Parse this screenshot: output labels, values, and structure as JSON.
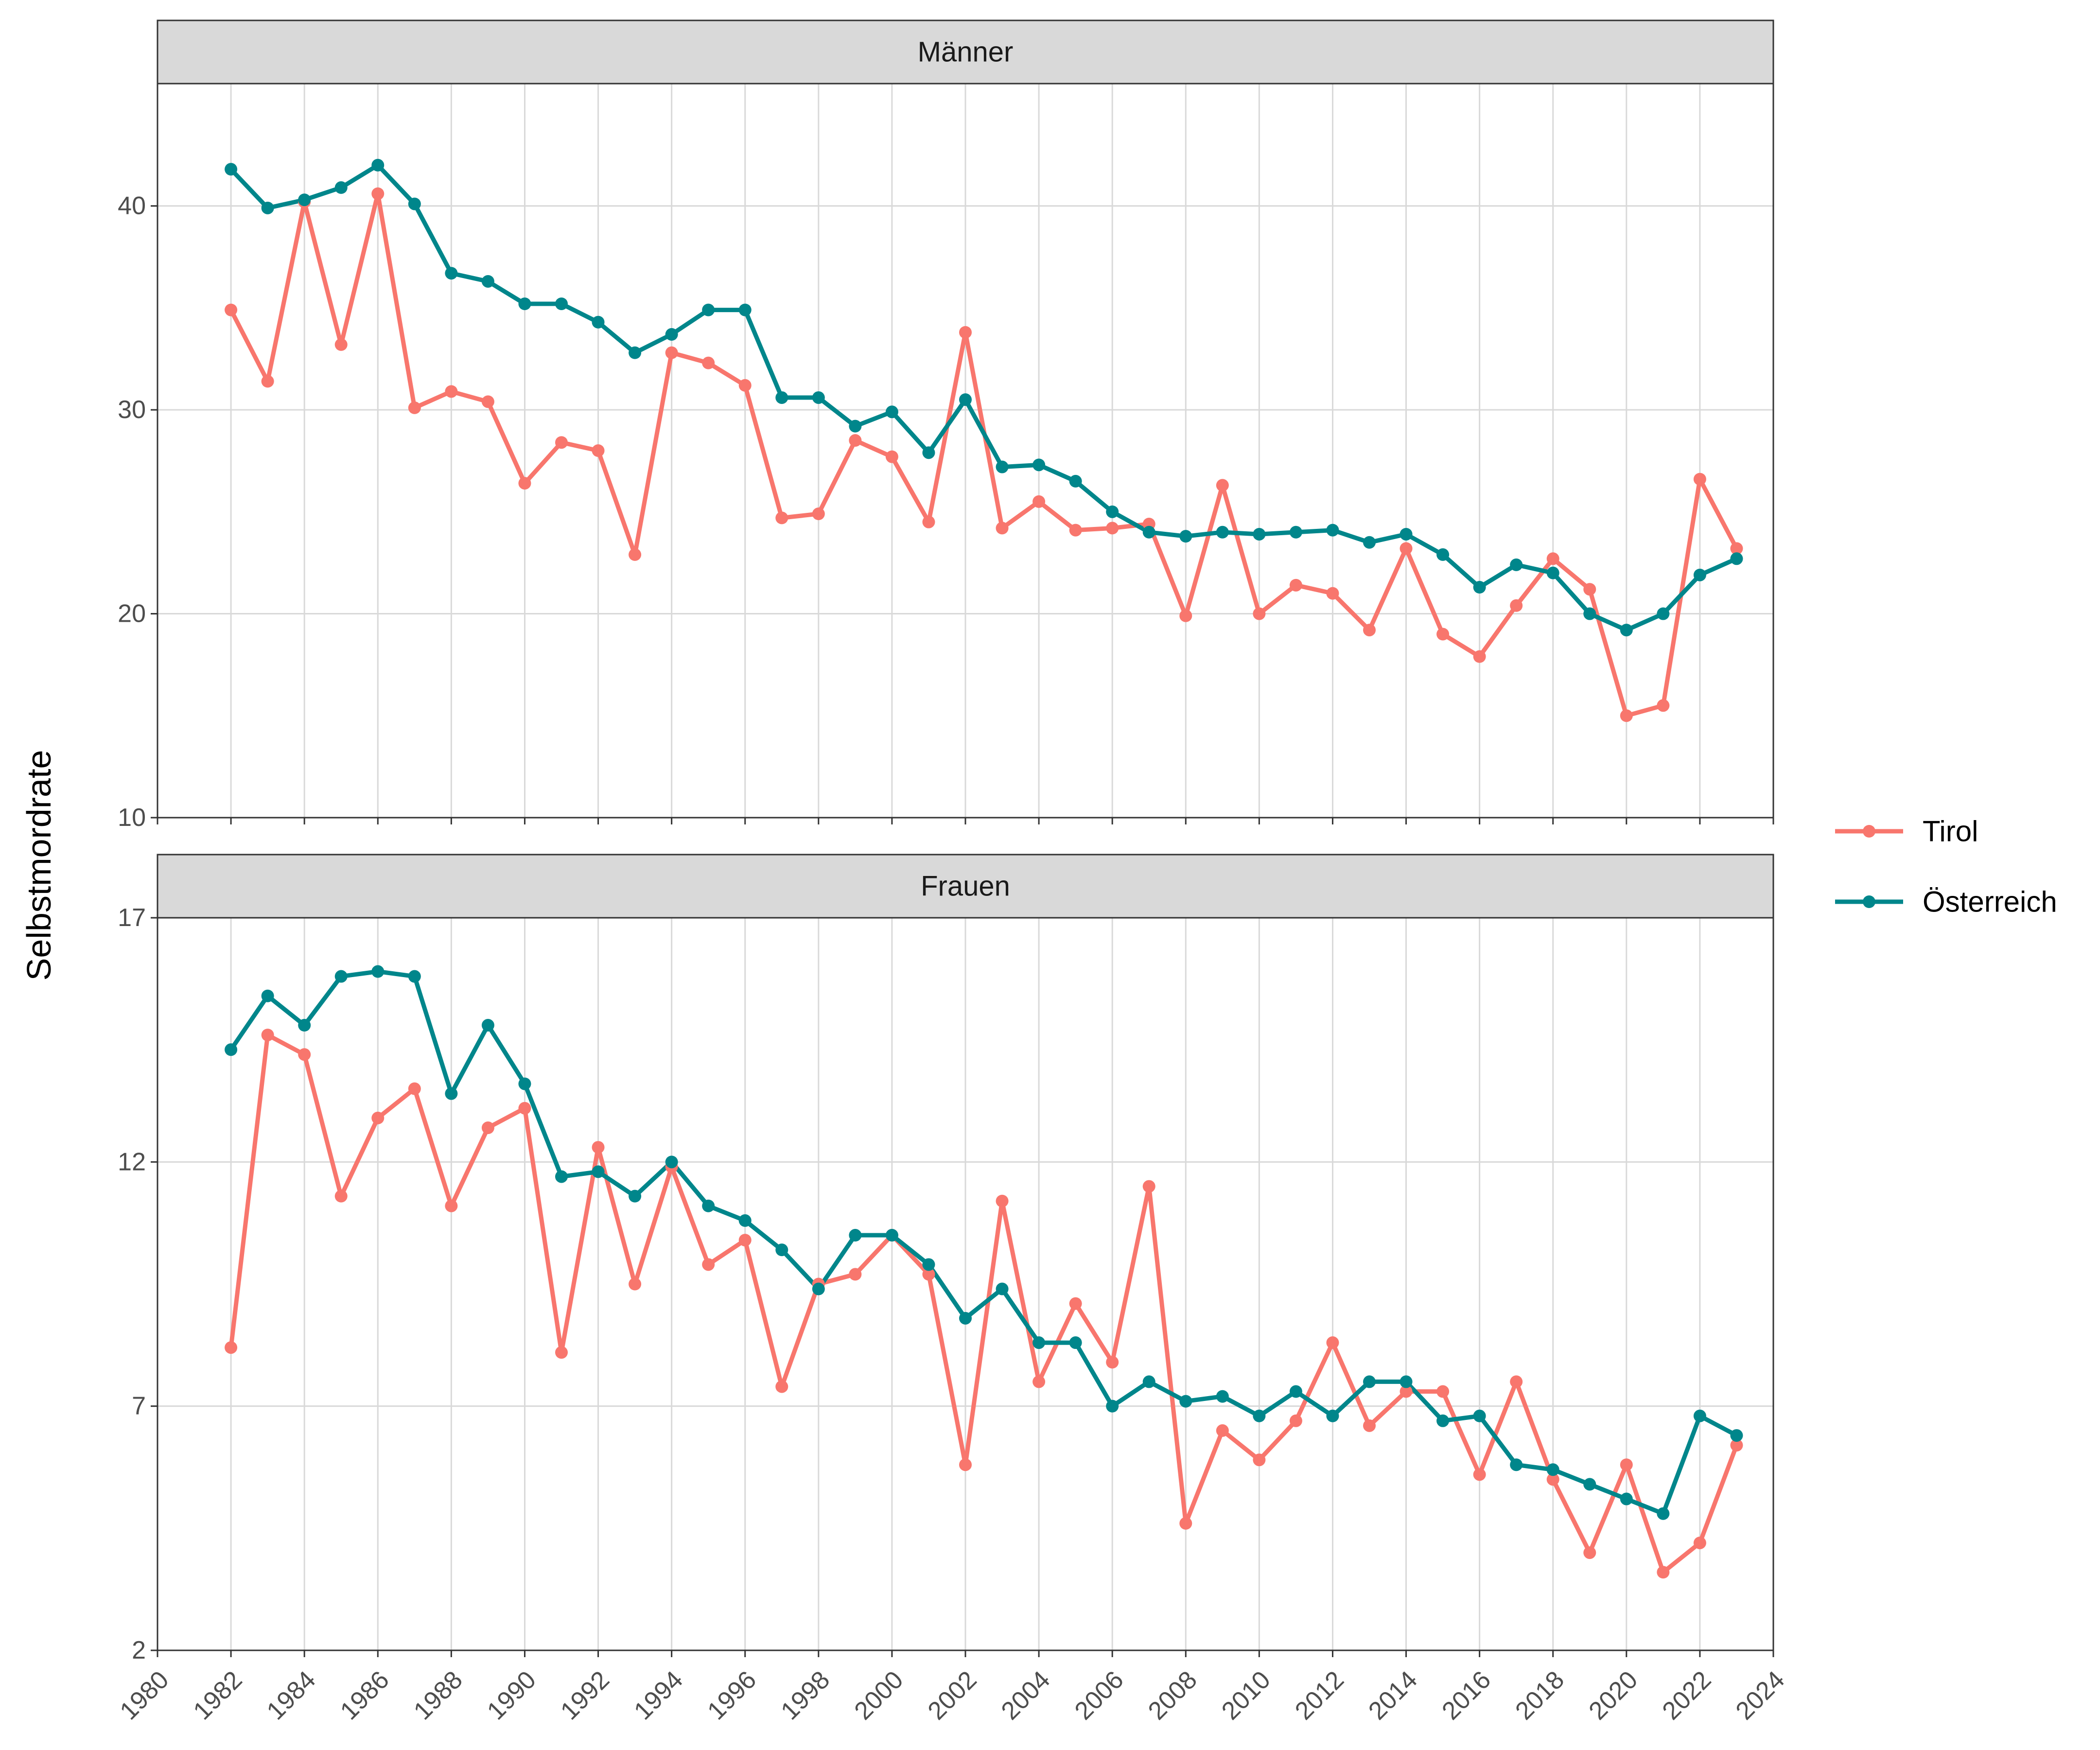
{
  "chart_data": {
    "type": "line",
    "ylabel": "Selbstmordrate",
    "xlabel": "",
    "x_ticks": [
      1980,
      1982,
      1984,
      1986,
      1988,
      1990,
      1992,
      1994,
      1996,
      1998,
      2000,
      2002,
      2004,
      2006,
      2008,
      2010,
      2012,
      2014,
      2016,
      2018,
      2020,
      2022,
      2024
    ],
    "xlim": [
      1980,
      2024
    ],
    "grid": true,
    "legend_position": "right",
    "legend": [
      {
        "name": "Tirol",
        "color": "#F8766D"
      },
      {
        "name": "Österreich",
        "color": "#00868B"
      }
    ],
    "years": [
      1982,
      1983,
      1984,
      1985,
      1986,
      1987,
      1988,
      1989,
      1990,
      1991,
      1992,
      1993,
      1994,
      1995,
      1996,
      1997,
      1998,
      1999,
      2000,
      2001,
      2002,
      2003,
      2004,
      2005,
      2006,
      2007,
      2008,
      2009,
      2010,
      2011,
      2012,
      2013,
      2014,
      2015,
      2016,
      2017,
      2018,
      2019,
      2020,
      2021,
      2022,
      2023
    ],
    "panels": [
      {
        "title": "Männer",
        "ylim": [
          10,
          46
        ],
        "y_ticks": [
          10,
          20,
          30,
          40
        ],
        "series": [
          {
            "name": "Tirol",
            "values": [
              34.9,
              31.4,
              40.2,
              33.2,
              40.6,
              30.1,
              30.9,
              30.4,
              26.4,
              28.4,
              28.0,
              22.9,
              32.8,
              32.3,
              31.2,
              24.7,
              24.9,
              28.5,
              27.7,
              24.5,
              33.8,
              24.2,
              25.5,
              24.1,
              24.2,
              24.4,
              19.9,
              26.3,
              20.0,
              21.4,
              21.0,
              19.2,
              23.2,
              19.0,
              17.9,
              20.4,
              22.7,
              21.2,
              15.0,
              15.5,
              26.6,
              23.2
            ]
          },
          {
            "name": "Österreich",
            "values": [
              41.8,
              39.9,
              40.3,
              40.9,
              42.0,
              40.1,
              36.7,
              36.3,
              35.2,
              35.2,
              34.3,
              32.8,
              33.7,
              34.9,
              34.9,
              30.6,
              30.6,
              29.2,
              29.9,
              27.9,
              30.5,
              27.2,
              27.3,
              26.5,
              25.0,
              24.0,
              23.8,
              24.0,
              23.9,
              24.0,
              24.1,
              23.5,
              23.9,
              22.9,
              21.3,
              22.4,
              22.0,
              20.0,
              19.2,
              20.0,
              21.9,
              22.7
            ]
          }
        ]
      },
      {
        "title": "Frauen",
        "ylim": [
          2,
          17
        ],
        "y_ticks": [
          2,
          7,
          12,
          17
        ],
        "series": [
          {
            "name": "Tirol",
            "values": [
              8.2,
              14.6,
              14.2,
              11.3,
              12.9,
              13.5,
              11.1,
              12.7,
              13.1,
              8.1,
              12.3,
              9.5,
              11.9,
              9.9,
              10.4,
              7.4,
              9.5,
              9.7,
              10.5,
              9.7,
              5.8,
              11.2,
              7.5,
              9.1,
              7.9,
              11.5,
              4.6,
              6.5,
              5.9,
              6.7,
              8.3,
              6.6,
              7.3,
              7.3,
              5.6,
              7.5,
              5.5,
              4.0,
              5.8,
              3.6,
              4.2,
              6.2
            ]
          },
          {
            "name": "Österreich",
            "values": [
              14.3,
              15.4,
              14.8,
              15.8,
              15.9,
              15.8,
              13.4,
              14.8,
              13.6,
              11.7,
              11.8,
              11.3,
              12.0,
              11.1,
              10.8,
              10.2,
              9.4,
              10.5,
              10.5,
              9.9,
              8.8,
              9.4,
              8.3,
              8.3,
              7.0,
              7.5,
              7.1,
              7.2,
              6.8,
              7.3,
              6.8,
              7.5,
              7.5,
              6.7,
              6.8,
              5.8,
              5.7,
              5.4,
              5.1,
              4.8,
              6.8,
              6.4
            ]
          }
        ]
      }
    ]
  }
}
